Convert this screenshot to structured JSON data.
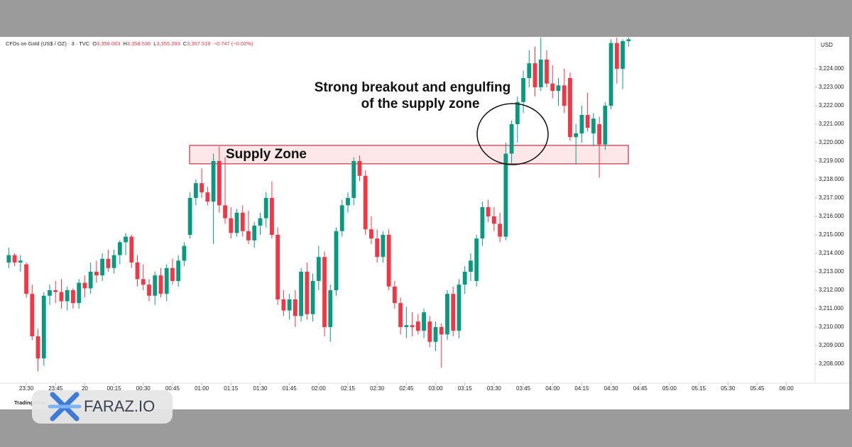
{
  "chart_data": {
    "type": "candlestick",
    "header": {
      "symbol": "CFDs on Gold (US$ / OZ) · 3 · TVC",
      "ohlc": [
        {
          "label": "O",
          "value": "3,358.063"
        },
        {
          "label": "H",
          "value": "3,358.530"
        },
        {
          "label": "L",
          "value": "3,355.293"
        },
        {
          "label": "C",
          "value": "3,357.519"
        }
      ],
      "change": "−0.747 (−0.02%)"
    },
    "currency": "USD",
    "brand": "TradingView",
    "watermark": "FARAZ.IO",
    "up_color": "#089981",
    "down_color": "#f23645",
    "zone": {
      "label": "Supply Zone",
      "low": 3218.85,
      "high": 3219.85
    },
    "annotations": [
      "Strong breakout and engulfing",
      "of the supply zone"
    ],
    "xlim": [
      -1.5,
      137.9
    ],
    "ylim": [
      3206.96,
      3225.73
    ],
    "xticks": [
      {
        "value": 3,
        "label": "23:30"
      },
      {
        "value": 8,
        "label": "23:45"
      },
      {
        "value": 13,
        "label": "20"
      },
      {
        "value": 18,
        "label": "00:15"
      },
      {
        "value": 23,
        "label": "00:30"
      },
      {
        "value": 28,
        "label": "00:45"
      },
      {
        "value": 33,
        "label": "01:00"
      },
      {
        "value": 38,
        "label": "01:15"
      },
      {
        "value": 43,
        "label": "01:30"
      },
      {
        "value": 48,
        "label": "01:45"
      },
      {
        "value": 53,
        "label": "02:00"
      },
      {
        "value": 58,
        "label": "02:15"
      },
      {
        "value": 63,
        "label": "02:30"
      },
      {
        "value": 68,
        "label": "02:45"
      },
      {
        "value": 73,
        "label": "03:00"
      },
      {
        "value": 78,
        "label": "03:15"
      },
      {
        "value": 83,
        "label": "03:30"
      },
      {
        "value": 88,
        "label": "03:45"
      },
      {
        "value": 93,
        "label": "04:00"
      },
      {
        "value": 98,
        "label": "04:15"
      },
      {
        "value": 103,
        "label": "04:30"
      },
      {
        "value": 108,
        "label": "04:45"
      },
      {
        "value": 113,
        "label": "05:00"
      },
      {
        "value": 118,
        "label": "05:15"
      },
      {
        "value": 123,
        "label": "05:30"
      },
      {
        "value": 128,
        "label": "05:45"
      },
      {
        "value": 133,
        "label": "06:00"
      }
    ],
    "yticks": [
      {
        "value": 3208,
        "label": "3,208.000"
      },
      {
        "value": 3209,
        "label": "3,209.000"
      },
      {
        "value": 3210,
        "label": "3,210.000"
      },
      {
        "value": 3211,
        "label": "3,211.000"
      },
      {
        "value": 3212,
        "label": "3,212.000"
      },
      {
        "value": 3213,
        "label": "3,213.000"
      },
      {
        "value": 3214,
        "label": "3,214.000"
      },
      {
        "value": 3215,
        "label": "3,215.000"
      },
      {
        "value": 3216,
        "label": "3,216.000"
      },
      {
        "value": 3217,
        "label": "3,217.000"
      },
      {
        "value": 3218,
        "label": "3,218.000"
      },
      {
        "value": 3219,
        "label": "3,219.000"
      },
      {
        "value": 3220,
        "label": "3,220.000"
      },
      {
        "value": 3221,
        "label": "3,221.000"
      },
      {
        "value": 3222,
        "label": "3,222.000"
      },
      {
        "value": 3223,
        "label": "3,223.000"
      },
      {
        "value": 3224,
        "label": "3,224.000"
      }
    ],
    "open": [
      3213.5,
      3213.9,
      3213.5,
      3213.4,
      3211.8,
      3209.5,
      3208.3,
      3211.7,
      3212.0,
      3211.9,
      3211.4,
      3212.0,
      3211.3,
      3212.4,
      3212.1,
      3213.0,
      3212.8,
      3213.7,
      3213.2,
      3213.9,
      3214.6,
      3214.9,
      3213.5,
      3212.6,
      3212.3,
      3211.7,
      3212.8,
      3211.8,
      3213.2,
      3212.5,
      3213.6,
      3215.0,
      3217.0,
      3217.8,
      3217.3,
      3216.8,
      3219.0,
      3216.6,
      3215.9,
      3215.1,
      3216.2,
      3215.2,
      3214.7,
      3215.5,
      3215.9,
      3217.0,
      3215.0,
      3211.5,
      3210.9,
      3211.5,
      3210.6,
      3213.0,
      3210.7,
      3212.5,
      3213.8,
      3210.0,
      3212.0,
      3215.2,
      3216.6,
      3217.0,
      3219.0,
      3218.2,
      3215.3,
      3214.8,
      3213.8,
      3215.0,
      3212.2,
      3211.3,
      3210.0,
      3210.1,
      3210.3,
      3209.8,
      3210.3,
      3209.2,
      3210.0,
      3209.6,
      3211.8,
      3209.8,
      3212.3,
      3213.0,
      3212.5,
      3214.8,
      3216.5,
      3216.0,
      3215.6,
      3214.9,
      3219.4,
      3221.0,
      3222.2,
      3223.5,
      3224.3,
      3223.0,
      3224.5,
      3223.2,
      3222.8,
      3223.1,
      3223.5,
      3220.3,
      3220.5,
      3221.5,
      3220.5,
      3221.0,
      3219.9,
      3222.0,
      3225.4,
      3224.0,
      3225.5
    ],
    "high": [
      3214.3,
      3214.0,
      3213.9,
      3213.5,
      3212.3,
      3209.9,
      3211.9,
      3212.3,
      3212.5,
      3212.6,
      3212.2,
      3212.1,
      3212.6,
      3212.8,
      3213.5,
      3213.6,
      3214.0,
      3214.2,
      3214.2,
      3214.7,
      3215.1,
      3215.0,
      3213.9,
      3213.4,
      3212.6,
      3213.0,
      3213.2,
      3213.4,
      3213.7,
      3213.9,
      3214.6,
      3217.3,
      3218.0,
      3218.6,
      3217.6,
      3219.4,
      3219.8,
      3219.2,
      3216.5,
      3216.4,
      3216.6,
      3216.3,
      3215.7,
      3216.2,
      3217.3,
      3217.9,
      3215.4,
      3212.0,
      3211.8,
      3212.0,
      3213.2,
      3213.5,
      3212.9,
      3214.4,
      3214.1,
      3212.3,
      3215.4,
      3216.9,
      3217.3,
      3219.2,
      3219.3,
      3218.5,
      3216.0,
      3215.3,
      3215.2,
      3215.3,
      3212.5,
      3211.6,
      3211.1,
      3210.8,
      3210.7,
      3211.0,
      3210.6,
      3210.3,
      3210.2,
      3212.0,
      3212.2,
      3212.6,
      3213.3,
      3214.0,
      3215.0,
      3216.8,
      3216.9,
      3216.5,
      3216.2,
      3220.0,
      3221.2,
      3222.5,
      3223.9,
      3225.0,
      3225.2,
      3225.7,
      3225.0,
      3224.2,
      3223.5,
      3224.0,
      3223.8,
      3221.0,
      3222.0,
      3222.7,
      3221.6,
      3221.4,
      3222.2,
      3225.6,
      3225.7,
      3225.6,
      3225.7
    ],
    "low": [
      3213.2,
      3213.3,
      3213.0,
      3211.6,
      3209.3,
      3207.6,
      3207.9,
      3211.2,
      3211.3,
      3211.0,
      3210.9,
      3211.0,
      3211.0,
      3211.6,
      3211.8,
      3212.4,
      3212.5,
      3213.0,
      3212.9,
      3213.4,
      3213.9,
      3213.2,
      3212.2,
      3212.0,
      3211.4,
      3211.2,
      3211.6,
      3211.4,
      3212.3,
      3212.2,
      3213.3,
      3214.8,
      3216.6,
      3217.0,
      3216.6,
      3214.5,
      3216.2,
      3215.6,
      3214.8,
      3214.9,
      3214.9,
      3214.5,
      3214.3,
      3215.0,
      3215.4,
      3214.8,
      3211.2,
      3210.6,
      3210.4,
      3210.0,
      3210.3,
      3210.4,
      3210.3,
      3212.0,
      3209.5,
      3209.2,
      3211.7,
      3214.9,
      3216.2,
      3216.6,
      3217.9,
      3215.0,
      3214.5,
      3213.5,
      3213.5,
      3212.0,
      3211.0,
      3209.6,
      3209.4,
      3209.5,
      3209.6,
      3209.4,
      3208.9,
      3208.7,
      3207.8,
      3209.3,
      3209.5,
      3209.4,
      3211.8,
      3212.5,
      3212.2,
      3214.4,
      3215.7,
      3215.2,
      3214.6,
      3214.7,
      3218.8,
      3220.0,
      3221.6,
      3223.0,
      3222.5,
      3222.8,
      3223.0,
      3222.4,
      3222.0,
      3221.6,
      3220.1,
      3218.8,
      3220.0,
      3220.6,
      3219.8,
      3218.1,
      3219.6,
      3221.8,
      3223.2,
      3222.9,
      3225.2
    ],
    "close": [
      3213.9,
      3213.5,
      3213.6,
      3211.8,
      3209.5,
      3208.3,
      3211.7,
      3212.0,
      3211.9,
      3211.4,
      3212.0,
      3211.3,
      3212.4,
      3212.1,
      3213.0,
      3212.8,
      3213.7,
      3213.2,
      3213.9,
      3214.6,
      3214.9,
      3213.5,
      3212.6,
      3212.3,
      3211.7,
      3212.8,
      3211.8,
      3213.2,
      3212.5,
      3213.6,
      3214.4,
      3217.0,
      3217.8,
      3217.3,
      3216.8,
      3219.0,
      3216.6,
      3215.9,
      3215.1,
      3216.2,
      3215.2,
      3214.7,
      3215.5,
      3215.9,
      3217.0,
      3215.0,
      3211.5,
      3210.9,
      3211.5,
      3210.6,
      3213.0,
      3210.7,
      3212.5,
      3213.8,
      3210.0,
      3212.0,
      3215.2,
      3216.6,
      3217.0,
      3219.0,
      3218.2,
      3215.3,
      3214.8,
      3213.8,
      3215.0,
      3212.2,
      3211.3,
      3210.0,
      3210.1,
      3210.0,
      3209.8,
      3210.8,
      3209.2,
      3210.0,
      3209.6,
      3211.8,
      3209.8,
      3212.3,
      3213.0,
      3213.6,
      3214.8,
      3216.5,
      3216.0,
      3215.6,
      3214.9,
      3219.4,
      3221.0,
      3222.2,
      3223.5,
      3224.3,
      3223.0,
      3224.5,
      3223.2,
      3222.8,
      3223.1,
      3222.0,
      3220.3,
      3220.5,
      3221.5,
      3220.8,
      3221.3,
      3219.9,
      3222.0,
      3225.4,
      3224.0,
      3225.5,
      3225.6
    ]
  }
}
